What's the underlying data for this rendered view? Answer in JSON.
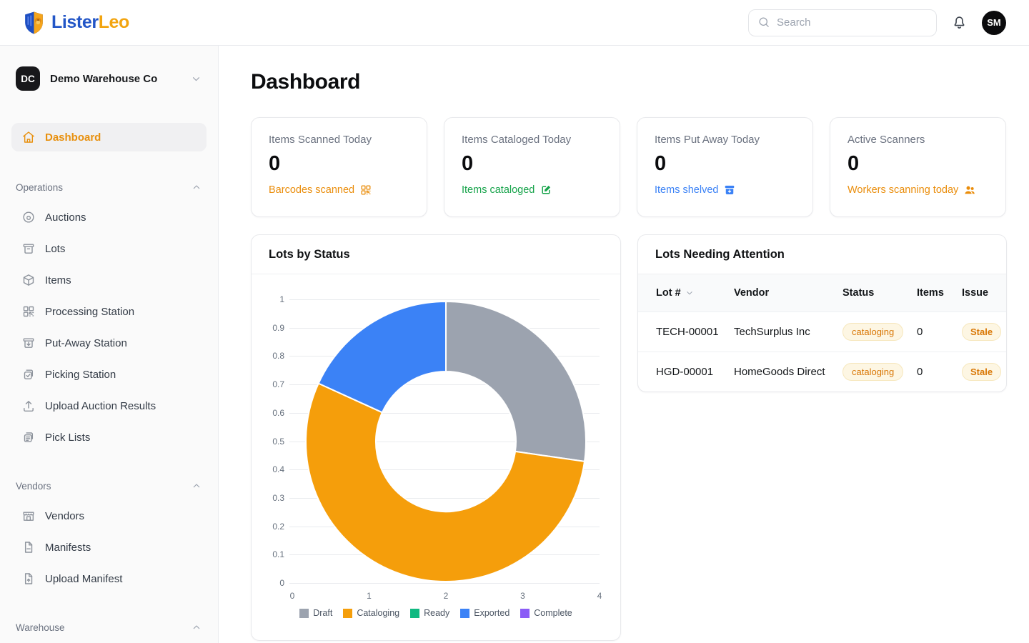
{
  "theme": {
    "accent_orange": "#e8900e",
    "brand_blue": "#2356c7",
    "brand_gold": "#f2a40f",
    "sidebar_bg": "#fafafa",
    "badge_text": "#d97706"
  },
  "header": {
    "brand": {
      "name_primary": "Lister",
      "name_secondary": "Leo"
    },
    "search": {
      "placeholder": "Search"
    },
    "avatar_initials": "SM"
  },
  "sidebar": {
    "org": {
      "initials": "DC",
      "name": "Demo Warehouse Co"
    },
    "dashboard_item": {
      "label": "Dashboard",
      "icon": "home",
      "active": true
    },
    "sections": [
      {
        "label": "Operations",
        "items": [
          {
            "label": "Auctions",
            "icon": "auction"
          },
          {
            "label": "Lots",
            "icon": "bin"
          },
          {
            "label": "Items",
            "icon": "cube"
          },
          {
            "label": "Processing Station",
            "icon": "qr"
          },
          {
            "label": "Put-Away Station",
            "icon": "box-down"
          },
          {
            "label": "Picking Station",
            "icon": "clipboard-check"
          },
          {
            "label": "Upload Auction Results",
            "icon": "upload"
          },
          {
            "label": "Pick Lists",
            "icon": "clipboard-list"
          }
        ]
      },
      {
        "label": "Vendors",
        "items": [
          {
            "label": "Vendors",
            "icon": "store"
          },
          {
            "label": "Manifests",
            "icon": "file"
          },
          {
            "label": "Upload Manifest",
            "icon": "file-up"
          }
        ]
      },
      {
        "label": "Warehouse",
        "items": []
      }
    ]
  },
  "main": {
    "title": "Dashboard",
    "stat_cards": [
      {
        "title": "Items Scanned Today",
        "value": "0",
        "footer": "Barcodes scanned",
        "icon": "qr",
        "color": "#ea8d0b"
      },
      {
        "title": "Items Cataloged Today",
        "value": "0",
        "footer": "Items cataloged",
        "icon": "edit",
        "color": "#16a34a"
      },
      {
        "title": "Items Put Away Today",
        "value": "0",
        "footer": "Items shelved",
        "icon": "archive-fill",
        "color": "#3b82f6"
      },
      {
        "title": "Active Scanners",
        "value": "0",
        "footer": "Workers scanning today",
        "icon": "users-fill",
        "color": "#ea8d0b"
      }
    ],
    "chart_card": {
      "title": "Lots by Status"
    },
    "attention_card": {
      "title": "Lots Needing Attention",
      "columns": [
        "Lot #",
        "Vendor",
        "Status",
        "Items",
        "Issue"
      ],
      "rows": [
        {
          "lot": "TECH-00001",
          "vendor": "TechSurplus Inc",
          "status": "cataloging",
          "items": "0",
          "issue": "Stale"
        },
        {
          "lot": "HGD-00001",
          "vendor": "HomeGoods Direct",
          "status": "cataloging",
          "items": "0",
          "issue": "Stale"
        }
      ]
    }
  },
  "chart_data": {
    "type": "pie",
    "variant": "doughnut",
    "title": "Lots by Status",
    "labels": [
      "Draft",
      "Cataloging",
      "Ready",
      "Exported",
      "Complete"
    ],
    "values": [
      3,
      6,
      0,
      2,
      0
    ],
    "colors": [
      "#9ca3af",
      "#f59e0b",
      "#10b981",
      "#3b82f6",
      "#8b5cf6"
    ],
    "legend_position": "bottom",
    "grid": "horizontal-only",
    "y_axis": {
      "min": 0,
      "max": 1,
      "tick_labels": [
        "1",
        "0.9",
        "0.8",
        "0.7",
        "0.6",
        "0.5",
        "0.4",
        "0.3",
        "0.2",
        "0.1",
        "0"
      ]
    },
    "x_axis": {
      "min": 0,
      "max": 4,
      "tick_labels": [
        "0",
        "1",
        "2",
        "3",
        "4"
      ]
    }
  }
}
